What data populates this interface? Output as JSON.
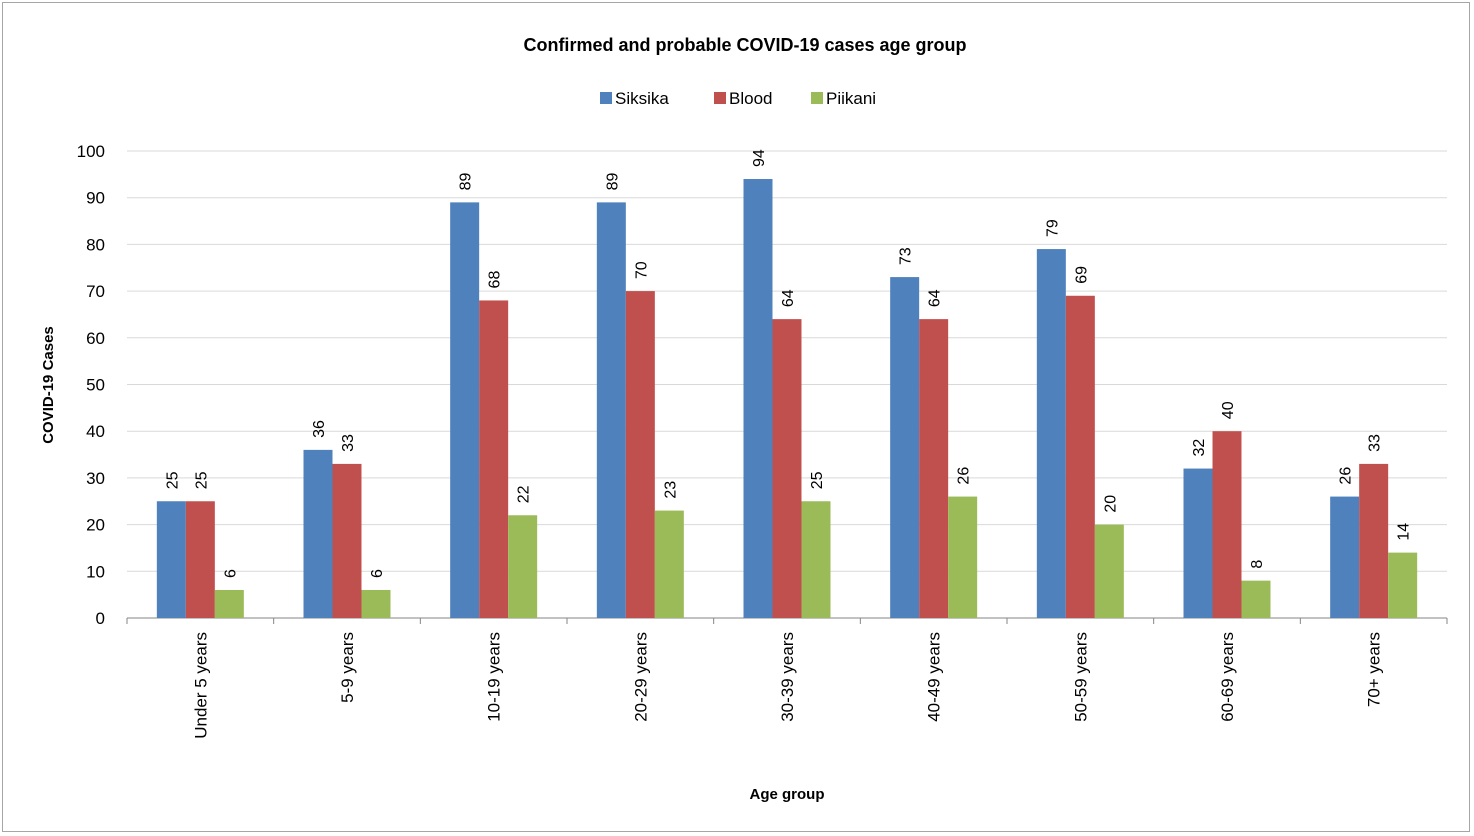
{
  "chart_data": {
    "type": "bar",
    "title": "Confirmed and probable COVID-19 cases age group",
    "xlabel": "Age group",
    "ylabel": "COVID-19 Cases",
    "ylim": [
      0,
      100
    ],
    "yticks": [
      0,
      10,
      20,
      30,
      40,
      50,
      60,
      70,
      80,
      90,
      100
    ],
    "grid": true,
    "legend_position": "top",
    "categories": [
      "Under 5 years",
      "5-9 years",
      "10-19 years",
      "20-29 years",
      "30-39 years",
      "40-49 years",
      "50-59 years",
      "60-69 years",
      "70+ years"
    ],
    "series": [
      {
        "name": "Siksika",
        "color": "#4f81bd",
        "values": [
          25,
          36,
          89,
          89,
          94,
          73,
          79,
          32,
          26
        ]
      },
      {
        "name": "Blood",
        "color": "#c0504d",
        "values": [
          25,
          33,
          68,
          70,
          64,
          64,
          69,
          40,
          33
        ]
      },
      {
        "name": "Piikani",
        "color": "#9bbb59",
        "values": [
          6,
          6,
          22,
          23,
          25,
          26,
          20,
          8,
          14
        ]
      }
    ]
  }
}
